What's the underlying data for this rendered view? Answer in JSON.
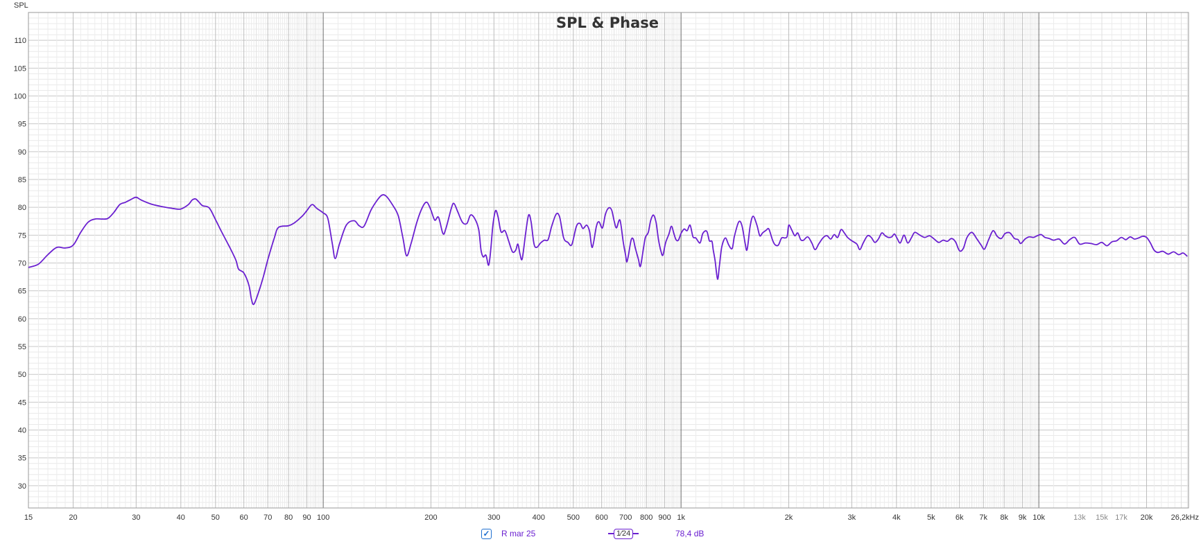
{
  "chart_data": {
    "type": "line",
    "title": "SPL & Phase",
    "ylabel": "SPL",
    "xlabel": "",
    "x_scale": "log",
    "xlim": [
      15,
      26200
    ],
    "ylim": [
      26,
      115
    ],
    "grid": true,
    "y_ticks": [
      "30",
      "35",
      "40",
      "45",
      "50",
      "55",
      "60",
      "65",
      "70",
      "75",
      "80",
      "85",
      "90",
      "95",
      "100",
      "105",
      "110"
    ],
    "x_ticks": [
      {
        "v": 15,
        "t": "15"
      },
      {
        "v": 20,
        "t": "20"
      },
      {
        "v": 30,
        "t": "30"
      },
      {
        "v": 40,
        "t": "40"
      },
      {
        "v": 50,
        "t": "50"
      },
      {
        "v": 60,
        "t": "60"
      },
      {
        "v": 70,
        "t": "70"
      },
      {
        "v": 80,
        "t": "80"
      },
      {
        "v": 90,
        "t": "90"
      },
      {
        "v": 100,
        "t": "100"
      },
      {
        "v": 200,
        "t": "200"
      },
      {
        "v": 300,
        "t": "300"
      },
      {
        "v": 400,
        "t": "400"
      },
      {
        "v": 500,
        "t": "500"
      },
      {
        "v": 600,
        "t": "600"
      },
      {
        "v": 700,
        "t": "700"
      },
      {
        "v": 800,
        "t": "800"
      },
      {
        "v": 900,
        "t": "900"
      },
      {
        "v": 1000,
        "t": "1k"
      },
      {
        "v": 2000,
        "t": "2k"
      },
      {
        "v": 3000,
        "t": "3k"
      },
      {
        "v": 4000,
        "t": "4k"
      },
      {
        "v": 5000,
        "t": "5k"
      },
      {
        "v": 6000,
        "t": "6k"
      },
      {
        "v": 7000,
        "t": "7k"
      },
      {
        "v": 8000,
        "t": "8k"
      },
      {
        "v": 9000,
        "t": "9k"
      },
      {
        "v": 10000,
        "t": "10k"
      },
      {
        "v": 13000,
        "t": "13k",
        "faint": true
      },
      {
        "v": 15000,
        "t": "15k",
        "faint": true
      },
      {
        "v": 17000,
        "t": "17k",
        "faint": true
      },
      {
        "v": 20000,
        "t": "20k"
      },
      {
        "v": 26200,
        "t": "26,2kHz"
      }
    ],
    "series": [
      {
        "name": "R mar 25",
        "color": "#6a1fd0",
        "points": [
          [
            15,
            69.2
          ],
          [
            16,
            69.8
          ],
          [
            17,
            71.5
          ],
          [
            18,
            72.8
          ],
          [
            19,
            72.7
          ],
          [
            20,
            73.2
          ],
          [
            21,
            75.5
          ],
          [
            22,
            77.3
          ],
          [
            23,
            77.9
          ],
          [
            24,
            77.9
          ],
          [
            25,
            78
          ],
          [
            26,
            79.1
          ],
          [
            27,
            80.5
          ],
          [
            28,
            80.9
          ],
          [
            29,
            81.4
          ],
          [
            30,
            81.8
          ],
          [
            31,
            81.3
          ],
          [
            33,
            80.6
          ],
          [
            35,
            80.2
          ],
          [
            38,
            79.8
          ],
          [
            40,
            79.7
          ],
          [
            42,
            80.5
          ],
          [
            43,
            81.3
          ],
          [
            44,
            81.5
          ],
          [
            45,
            80.9
          ],
          [
            46,
            80.3
          ],
          [
            48,
            79.9
          ],
          [
            50,
            77.8
          ],
          [
            52,
            75.6
          ],
          [
            55,
            72.6
          ],
          [
            57,
            70.5
          ],
          [
            58,
            68.9
          ],
          [
            60,
            68.2
          ],
          [
            62,
            66
          ],
          [
            63,
            63.5
          ],
          [
            64,
            62.6
          ],
          [
            66,
            64.8
          ],
          [
            68,
            67.5
          ],
          [
            70,
            70.6
          ],
          [
            73,
            74.5
          ],
          [
            75,
            76.4
          ],
          [
            80,
            76.7
          ],
          [
            83,
            77.2
          ],
          [
            87,
            78.3
          ],
          [
            90,
            79.4
          ],
          [
            93,
            80.5
          ],
          [
            96,
            79.8
          ],
          [
            100,
            79
          ],
          [
            103,
            78
          ],
          [
            106,
            73.5
          ],
          [
            108,
            70.8
          ],
          [
            111,
            73.4
          ],
          [
            116,
            76.8
          ],
          [
            122,
            77.6
          ],
          [
            126,
            76.7
          ],
          [
            130,
            76.6
          ],
          [
            136,
            79.5
          ],
          [
            142,
            81.4
          ],
          [
            146,
            82.2
          ],
          [
            150,
            82
          ],
          [
            156,
            80.5
          ],
          [
            162,
            78.5
          ],
          [
            167,
            74.5
          ],
          [
            171,
            71.3
          ],
          [
            176,
            73.5
          ],
          [
            183,
            77.5
          ],
          [
            190,
            80.2
          ],
          [
            195,
            80.9
          ],
          [
            200,
            79.5
          ],
          [
            205,
            77.7
          ],
          [
            210,
            78.2
          ],
          [
            216,
            75.3
          ],
          [
            220,
            76.1
          ],
          [
            228,
            79.8
          ],
          [
            232,
            80.7
          ],
          [
            238,
            79.1
          ],
          [
            245,
            77.3
          ],
          [
            252,
            77.1
          ],
          [
            258,
            78.6
          ],
          [
            265,
            78
          ],
          [
            272,
            76
          ],
          [
            276,
            72.3
          ],
          [
            280,
            71.1
          ],
          [
            285,
            71.4
          ],
          [
            290,
            69.6
          ],
          [
            294,
            72.5
          ],
          [
            298,
            76.8
          ],
          [
            303,
            79.4
          ],
          [
            308,
            78.3
          ],
          [
            314,
            75.6
          ],
          [
            322,
            75.8
          ],
          [
            330,
            73.9
          ],
          [
            338,
            72
          ],
          [
            345,
            72.3
          ],
          [
            350,
            73.4
          ],
          [
            355,
            71.5
          ],
          [
            360,
            70.8
          ],
          [
            368,
            75.4
          ],
          [
            375,
            78.6
          ],
          [
            381,
            77.4
          ],
          [
            388,
            73.5
          ],
          [
            395,
            72.8
          ],
          [
            405,
            73.6
          ],
          [
            415,
            74.1
          ],
          [
            425,
            74.2
          ],
          [
            435,
            76.6
          ],
          [
            448,
            78.8
          ],
          [
            458,
            78.2
          ],
          [
            470,
            74.5
          ],
          [
            483,
            73.7
          ],
          [
            495,
            73.3
          ],
          [
            510,
            76.6
          ],
          [
            522,
            77.1
          ],
          [
            532,
            76.2
          ],
          [
            545,
            76.8
          ],
          [
            555,
            75.7
          ],
          [
            565,
            72.8
          ],
          [
            580,
            76.6
          ],
          [
            590,
            77.4
          ],
          [
            603,
            76.3
          ],
          [
            615,
            78.8
          ],
          [
            628,
            79.9
          ],
          [
            640,
            79.5
          ],
          [
            650,
            77.6
          ],
          [
            660,
            76.3
          ],
          [
            675,
            77.7
          ],
          [
            690,
            73.6
          ],
          [
            700,
            71.4
          ],
          [
            705,
            70.2
          ],
          [
            712,
            71.2
          ],
          [
            725,
            74.1
          ],
          [
            735,
            74.3
          ],
          [
            745,
            72.7
          ],
          [
            760,
            70.7
          ],
          [
            770,
            69.4
          ],
          [
            785,
            72.6
          ],
          [
            795,
            74.6
          ],
          [
            810,
            75.5
          ],
          [
            823,
            77.7
          ],
          [
            838,
            78.6
          ],
          [
            852,
            77.2
          ],
          [
            865,
            74.2
          ],
          [
            878,
            72.2
          ],
          [
            890,
            71.4
          ],
          [
            905,
            73.6
          ],
          [
            925,
            75.2
          ],
          [
            940,
            76.6
          ],
          [
            955,
            75.3
          ],
          [
            968,
            74.2
          ],
          [
            983,
            74.1
          ],
          [
            1000,
            75.3
          ],
          [
            1020,
            76.1
          ],
          [
            1040,
            75.8
          ],
          [
            1060,
            76.8
          ],
          [
            1080,
            74.7
          ],
          [
            1100,
            74.5
          ],
          [
            1130,
            73.6
          ],
          [
            1150,
            75.3
          ],
          [
            1180,
            75.7
          ],
          [
            1200,
            74
          ],
          [
            1220,
            73.9
          ],
          [
            1230,
            72.4
          ],
          [
            1245,
            70.4
          ],
          [
            1265,
            67.1
          ],
          [
            1280,
            69.5
          ],
          [
            1300,
            72.9
          ],
          [
            1330,
            74.5
          ],
          [
            1360,
            73.2
          ],
          [
            1390,
            72.6
          ],
          [
            1410,
            74.8
          ],
          [
            1450,
            77.4
          ],
          [
            1480,
            76.7
          ],
          [
            1510,
            73.6
          ],
          [
            1530,
            72.4
          ],
          [
            1560,
            76.6
          ],
          [
            1590,
            78.4
          ],
          [
            1630,
            76.8
          ],
          [
            1660,
            74.9
          ],
          [
            1690,
            75.4
          ],
          [
            1730,
            75.9
          ],
          [
            1760,
            76.1
          ],
          [
            1800,
            74.2
          ],
          [
            1830,
            73.3
          ],
          [
            1870,
            73.2
          ],
          [
            1910,
            74.5
          ],
          [
            1950,
            74.5
          ],
          [
            1980,
            74.8
          ],
          [
            2000,
            76.8
          ],
          [
            2040,
            75.9
          ],
          [
            2080,
            74.9
          ],
          [
            2120,
            75.4
          ],
          [
            2160,
            74.2
          ],
          [
            2200,
            74.1
          ],
          [
            2260,
            74.7
          ],
          [
            2320,
            73.6
          ],
          [
            2370,
            72.4
          ],
          [
            2430,
            73.5
          ],
          [
            2500,
            74.6
          ],
          [
            2560,
            74.9
          ],
          [
            2620,
            74.3
          ],
          [
            2680,
            75.1
          ],
          [
            2740,
            74.6
          ],
          [
            2800,
            76
          ],
          [
            2860,
            75.4
          ],
          [
            2920,
            74.6
          ],
          [
            3000,
            74
          ],
          [
            3100,
            73.4
          ],
          [
            3160,
            72.4
          ],
          [
            3230,
            73.6
          ],
          [
            3320,
            74.9
          ],
          [
            3400,
            74.6
          ],
          [
            3480,
            73.7
          ],
          [
            3560,
            74.3
          ],
          [
            3640,
            75.4
          ],
          [
            3720,
            74.9
          ],
          [
            3800,
            74.6
          ],
          [
            3880,
            74.7
          ],
          [
            3950,
            75.2
          ],
          [
            4020,
            74.4
          ],
          [
            4100,
            73.6
          ],
          [
            4200,
            75
          ],
          [
            4300,
            73.6
          ],
          [
            4400,
            74.5
          ],
          [
            4500,
            75.5
          ],
          [
            4650,
            75
          ],
          [
            4800,
            74.6
          ],
          [
            4950,
            74.9
          ],
          [
            5100,
            74.3
          ],
          [
            5250,
            73.7
          ],
          [
            5400,
            74.1
          ],
          [
            5550,
            73.9
          ],
          [
            5700,
            74.4
          ],
          [
            5850,
            73.8
          ],
          [
            6000,
            72.2
          ],
          [
            6150,
            72.6
          ],
          [
            6300,
            74.6
          ],
          [
            6500,
            75.5
          ],
          [
            6700,
            74.4
          ],
          [
            6900,
            73.2
          ],
          [
            7050,
            72.5
          ],
          [
            7250,
            74.3
          ],
          [
            7450,
            75.8
          ],
          [
            7650,
            74.8
          ],
          [
            7850,
            74.4
          ],
          [
            8050,
            75.3
          ],
          [
            8300,
            75.4
          ],
          [
            8550,
            74.4
          ],
          [
            8750,
            74.2
          ],
          [
            8900,
            73.5
          ],
          [
            9150,
            74.3
          ],
          [
            9400,
            74.7
          ],
          [
            9650,
            74.6
          ],
          [
            9900,
            74.9
          ],
          [
            10150,
            75.1
          ],
          [
            10400,
            74.6
          ],
          [
            10700,
            74.4
          ],
          [
            11000,
            74.1
          ],
          [
            11400,
            74.3
          ],
          [
            11800,
            73.4
          ],
          [
            12200,
            74.2
          ],
          [
            12600,
            74.6
          ],
          [
            13000,
            73.4
          ],
          [
            13500,
            73.6
          ],
          [
            14000,
            73.5
          ],
          [
            14500,
            73.3
          ],
          [
            15000,
            73.7
          ],
          [
            15500,
            73.1
          ],
          [
            16000,
            73.8
          ],
          [
            16500,
            74
          ],
          [
            17000,
            74.6
          ],
          [
            17500,
            74.2
          ],
          [
            18000,
            74.7
          ],
          [
            18500,
            74.3
          ],
          [
            19000,
            74.5
          ],
          [
            19500,
            74.8
          ],
          [
            20000,
            74.6
          ],
          [
            20500,
            73.6
          ],
          [
            21000,
            72.3
          ],
          [
            21500,
            71.9
          ],
          [
            22200,
            72.1
          ],
          [
            23000,
            71.6
          ],
          [
            23800,
            72
          ],
          [
            24600,
            71.5
          ],
          [
            25300,
            71.8
          ],
          [
            26000,
            71.2
          ]
        ]
      }
    ]
  },
  "legend": {
    "series_checked": true,
    "series_label": "R mar 25",
    "smoothing_label": "1⁄24",
    "readout": "78,4 dB"
  }
}
